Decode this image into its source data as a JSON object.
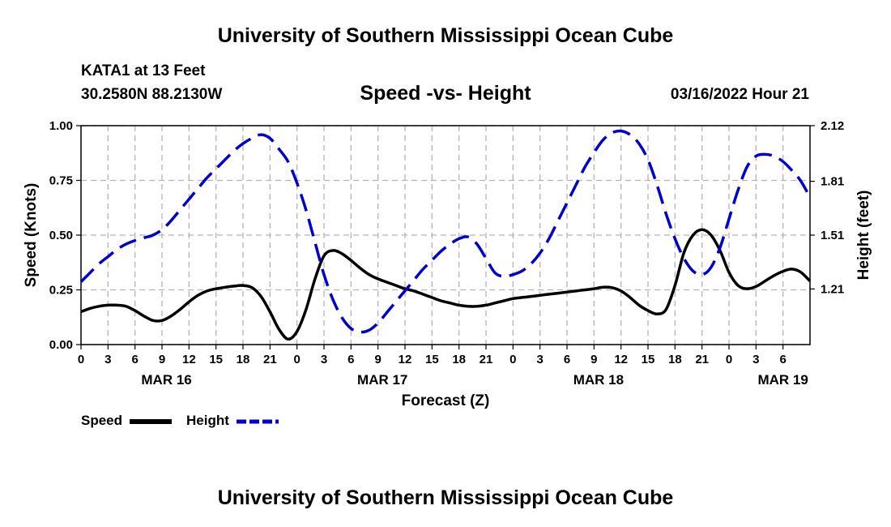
{
  "header": {
    "title": "University of Southern Mississippi Ocean Cube",
    "station": "KATA1 at 13 Feet",
    "coords": "30.2580N  88.2130W",
    "stamp": "03/16/2022 Hour 21"
  },
  "footer": {
    "title": "University of Southern Mississippi Ocean Cube"
  },
  "legend": {
    "speed_label": "Speed",
    "height_label": "Height"
  },
  "colors": {
    "speed": "#000000",
    "height": "#0000cc",
    "grid": "#b4b4b4"
  },
  "chart_data": {
    "type": "line",
    "title": "Speed -vs- Height",
    "xlabel": "Forecast (Z)",
    "ylabel_left": "Speed (Knots)",
    "ylabel_right": "Height (feet)",
    "x_range_hours": [
      0,
      81
    ],
    "x_ticks": [
      {
        "h": 0,
        "label": "0"
      },
      {
        "h": 3,
        "label": "3"
      },
      {
        "h": 6,
        "label": "6"
      },
      {
        "h": 9,
        "label": "9"
      },
      {
        "h": 12,
        "label": "12"
      },
      {
        "h": 15,
        "label": "15"
      },
      {
        "h": 18,
        "label": "18"
      },
      {
        "h": 21,
        "label": "21"
      },
      {
        "h": 24,
        "label": "0"
      },
      {
        "h": 27,
        "label": "3"
      },
      {
        "h": 30,
        "label": "6"
      },
      {
        "h": 33,
        "label": "9"
      },
      {
        "h": 36,
        "label": "12"
      },
      {
        "h": 39,
        "label": "15"
      },
      {
        "h": 42,
        "label": "18"
      },
      {
        "h": 45,
        "label": "21"
      },
      {
        "h": 48,
        "label": "0"
      },
      {
        "h": 51,
        "label": "3"
      },
      {
        "h": 54,
        "label": "6"
      },
      {
        "h": 57,
        "label": "9"
      },
      {
        "h": 60,
        "label": "12"
      },
      {
        "h": 63,
        "label": "15"
      },
      {
        "h": 66,
        "label": "18"
      },
      {
        "h": 69,
        "label": "21"
      },
      {
        "h": 72,
        "label": "0"
      },
      {
        "h": 75,
        "label": "3"
      },
      {
        "h": 78,
        "label": "6"
      }
    ],
    "date_labels": [
      {
        "h": 9.5,
        "label": "MAR 16"
      },
      {
        "h": 33.5,
        "label": "MAR 17"
      },
      {
        "h": 57.5,
        "label": "MAR 18"
      },
      {
        "h": 78,
        "label": "MAR 19"
      }
    ],
    "y_left": {
      "range": [
        0,
        1.0
      ],
      "ticks": [
        "0.00",
        "0.25",
        "0.50",
        "0.75",
        "1.00"
      ]
    },
    "y_right": {
      "range": [
        0.9,
        2.12
      ],
      "ticks": [
        {
          "v": 1.21,
          "label": "1.21"
        },
        {
          "v": 1.51,
          "label": "1.51"
        },
        {
          "v": 1.81,
          "label": "1.81"
        },
        {
          "v": 2.12,
          "label": "2.12"
        }
      ]
    },
    "series": [
      {
        "name": "Speed",
        "axis": "left",
        "style": "solid",
        "x": [
          0,
          1,
          2,
          3,
          4,
          5,
          6,
          7,
          8,
          9,
          10,
          11,
          12,
          13,
          14,
          15,
          16,
          17,
          18,
          19,
          20,
          21,
          22,
          23,
          24,
          25,
          26,
          27,
          28,
          29,
          30,
          31,
          32,
          33,
          34,
          35,
          36,
          37,
          38,
          39,
          40,
          41,
          42,
          43,
          44,
          45,
          46,
          47,
          48,
          49,
          50,
          51,
          52,
          53,
          54,
          55,
          56,
          57,
          58,
          59,
          60,
          61,
          62,
          63,
          64,
          65,
          66,
          67,
          68,
          69,
          70,
          71,
          72,
          73,
          74,
          75,
          76,
          77,
          78,
          79,
          80,
          81
        ],
        "values": [
          0.15,
          0.165,
          0.175,
          0.18,
          0.18,
          0.175,
          0.155,
          0.13,
          0.11,
          0.11,
          0.13,
          0.16,
          0.195,
          0.225,
          0.245,
          0.255,
          0.262,
          0.267,
          0.27,
          0.26,
          0.22,
          0.15,
          0.07,
          0.025,
          0.06,
          0.16,
          0.3,
          0.405,
          0.43,
          0.415,
          0.385,
          0.35,
          0.32,
          0.3,
          0.285,
          0.27,
          0.255,
          0.245,
          0.23,
          0.215,
          0.2,
          0.19,
          0.18,
          0.175,
          0.175,
          0.18,
          0.19,
          0.2,
          0.21,
          0.215,
          0.22,
          0.225,
          0.23,
          0.235,
          0.24,
          0.245,
          0.25,
          0.255,
          0.262,
          0.26,
          0.245,
          0.215,
          0.18,
          0.155,
          0.14,
          0.16,
          0.27,
          0.42,
          0.5,
          0.525,
          0.5,
          0.43,
          0.33,
          0.27,
          0.255,
          0.265,
          0.29,
          0.315,
          0.335,
          0.345,
          0.33,
          0.29
        ]
      },
      {
        "name": "Height",
        "axis": "right",
        "style": "dashed",
        "x": [
          0,
          1,
          2,
          3,
          4,
          5,
          6,
          7,
          8,
          9,
          10,
          11,
          12,
          13,
          14,
          15,
          16,
          17,
          18,
          19,
          20,
          21,
          22,
          23,
          24,
          25,
          26,
          27,
          28,
          29,
          30,
          31,
          32,
          33,
          34,
          35,
          36,
          37,
          38,
          39,
          40,
          41,
          42,
          43,
          44,
          45,
          46,
          47,
          48,
          49,
          50,
          51,
          52,
          53,
          54,
          55,
          56,
          57,
          58,
          59,
          60,
          61,
          62,
          63,
          64,
          65,
          66,
          67,
          68,
          69,
          70,
          71,
          72,
          73,
          74,
          75,
          76,
          77,
          78,
          79,
          80,
          81
        ],
        "values": [
          1.25,
          1.3,
          1.35,
          1.39,
          1.43,
          1.46,
          1.48,
          1.495,
          1.51,
          1.54,
          1.59,
          1.65,
          1.71,
          1.77,
          1.83,
          1.88,
          1.93,
          1.98,
          2.02,
          2.05,
          2.07,
          2.05,
          1.99,
          1.92,
          1.8,
          1.65,
          1.47,
          1.29,
          1.15,
          1.05,
          0.99,
          0.97,
          0.98,
          1.02,
          1.08,
          1.14,
          1.2,
          1.26,
          1.32,
          1.37,
          1.42,
          1.46,
          1.49,
          1.5,
          1.46,
          1.38,
          1.3,
          1.28,
          1.29,
          1.31,
          1.35,
          1.41,
          1.49,
          1.59,
          1.69,
          1.79,
          1.89,
          1.97,
          2.04,
          2.08,
          2.09,
          2.07,
          2.02,
          1.93,
          1.79,
          1.63,
          1.49,
          1.38,
          1.31,
          1.29,
          1.33,
          1.44,
          1.6,
          1.76,
          1.89,
          1.95,
          1.96,
          1.95,
          1.92,
          1.87,
          1.81,
          1.72
        ]
      }
    ]
  }
}
